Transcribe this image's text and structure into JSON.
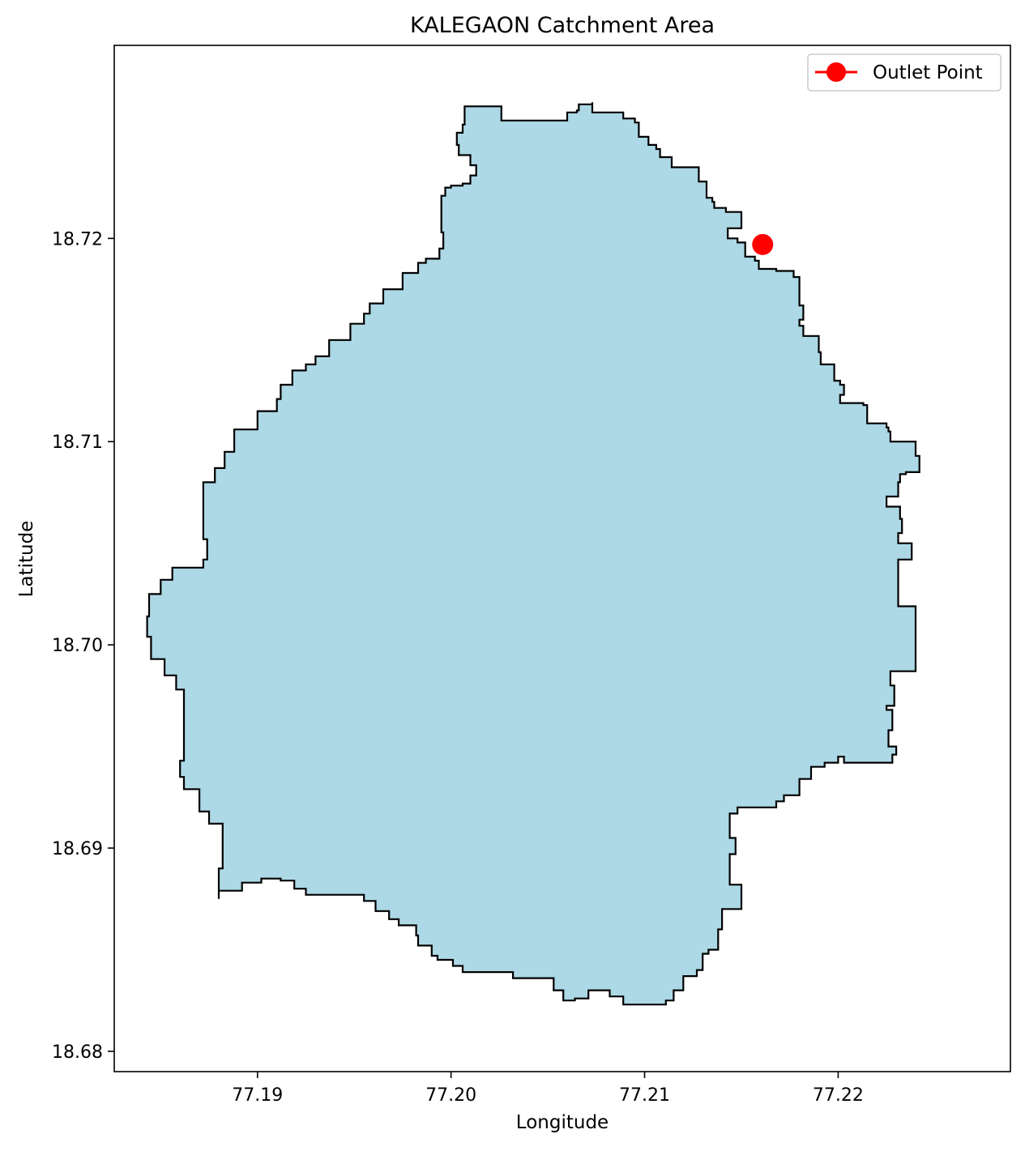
{
  "chart_data": {
    "type": "map",
    "title": "KALEGAON Catchment Area",
    "xlabel": "Longitude",
    "ylabel": "Latitude",
    "xlim": [
      77.1826,
      77.2289
    ],
    "ylim": [
      18.679,
      18.7295
    ],
    "x_ticks": [
      {
        "value": 77.19,
        "label": "77.19"
      },
      {
        "value": 77.2,
        "label": "77.20"
      },
      {
        "value": 77.21,
        "label": "77.21"
      },
      {
        "value": 77.22,
        "label": "77.22"
      }
    ],
    "y_ticks": [
      {
        "value": 18.68,
        "label": "18.68"
      },
      {
        "value": 18.69,
        "label": "18.69"
      },
      {
        "value": 18.7,
        "label": "18.70"
      },
      {
        "value": 18.71,
        "label": "18.71"
      },
      {
        "value": 18.72,
        "label": "18.72"
      }
    ],
    "grid": false,
    "legend": {
      "position": "top-right",
      "entries": [
        {
          "label": "Outlet Point",
          "marker": "circle",
          "color": "#ff0000"
        }
      ]
    },
    "catchment": {
      "fill_color": "#add8e6",
      "edge_color": "#000000",
      "boundary": [
        [
          77.2007,
          18.7265
        ],
        [
          77.2026,
          18.7265
        ],
        [
          77.2026,
          18.7258
        ],
        [
          77.206,
          18.7258
        ],
        [
          77.206,
          18.7262
        ],
        [
          77.2065,
          18.7263
        ],
        [
          77.2066,
          18.7266
        ],
        [
          77.2073,
          18.7267
        ],
        [
          77.2073,
          18.7262
        ],
        [
          77.2089,
          18.7262
        ],
        [
          77.2089,
          18.7259
        ],
        [
          77.2095,
          18.7257
        ],
        [
          77.2097,
          18.725
        ],
        [
          77.2102,
          18.7246
        ],
        [
          77.2106,
          18.7244
        ],
        [
          77.2108,
          18.724
        ],
        [
          77.2114,
          18.7235
        ],
        [
          77.2128,
          18.7233
        ],
        [
          77.2128,
          18.7228
        ],
        [
          77.2132,
          18.722
        ],
        [
          77.2135,
          18.7218
        ],
        [
          77.2136,
          18.7215
        ],
        [
          77.2142,
          18.7213
        ],
        [
          77.215,
          18.7212
        ],
        [
          77.215,
          18.7205
        ],
        [
          77.2143,
          18.7204
        ],
        [
          77.2143,
          18.72
        ],
        [
          77.2148,
          18.7198
        ],
        [
          77.2152,
          18.7195
        ],
        [
          77.2152,
          18.7191
        ],
        [
          77.2157,
          18.7189
        ],
        [
          77.2159,
          18.7185
        ],
        [
          77.2168,
          18.7184
        ],
        [
          77.2174,
          18.7184
        ],
        [
          77.2177,
          18.7181
        ],
        [
          77.218,
          18.7177
        ],
        [
          77.218,
          18.7167
        ],
        [
          77.2182,
          18.716
        ],
        [
          77.218,
          18.7157
        ],
        [
          77.2182,
          18.7152
        ],
        [
          77.219,
          18.715
        ],
        [
          77.219,
          18.7144
        ],
        [
          77.2191,
          18.7138
        ],
        [
          77.2198,
          18.7136
        ],
        [
          77.2198,
          18.713
        ],
        [
          77.2201,
          18.7128
        ],
        [
          77.2203,
          18.7123
        ],
        [
          77.2201,
          18.7119
        ],
        [
          77.2213,
          18.7118
        ],
        [
          77.2215,
          18.7109
        ],
        [
          77.2225,
          18.7107
        ],
        [
          77.2226,
          18.7105
        ],
        [
          77.2227,
          18.71
        ],
        [
          77.2234,
          18.71
        ],
        [
          77.224,
          18.7093
        ],
        [
          77.2242,
          18.7085
        ],
        [
          77.2235,
          18.7084
        ],
        [
          77.2232,
          18.708
        ],
        [
          77.2231,
          18.7073
        ],
        [
          77.2225,
          18.7068
        ],
        [
          77.2232,
          18.7062
        ],
        [
          77.2233,
          18.7055
        ],
        [
          77.2231,
          18.705
        ],
        [
          77.2238,
          18.7042
        ],
        [
          77.2231,
          18.7032
        ],
        [
          77.2231,
          18.7019
        ],
        [
          77.224,
          18.7011
        ],
        [
          77.224,
          18.7
        ],
        [
          77.224,
          18.6987
        ],
        [
          77.2229,
          18.6987
        ],
        [
          77.2227,
          18.698
        ],
        [
          77.2229,
          18.697
        ],
        [
          77.2225,
          18.6968
        ],
        [
          77.2228,
          18.6958
        ],
        [
          77.2226,
          18.695
        ],
        [
          77.223,
          18.6946
        ],
        [
          77.2228,
          18.6942
        ],
        [
          77.2212,
          18.6942
        ],
        [
          77.2203,
          18.6945
        ],
        [
          77.22,
          18.6942
        ],
        [
          77.2193,
          18.694
        ],
        [
          77.2186,
          18.6934
        ],
        [
          77.218,
          18.6926
        ],
        [
          77.2172,
          18.6923
        ],
        [
          77.2168,
          18.692
        ],
        [
          77.216,
          18.692
        ],
        [
          77.2148,
          18.6917
        ],
        [
          77.2144,
          18.6913
        ],
        [
          77.2144,
          18.6905
        ],
        [
          77.2147,
          18.6897
        ],
        [
          77.2144,
          18.689
        ],
        [
          77.2144,
          18.6882
        ],
        [
          77.215,
          18.688
        ],
        [
          77.215,
          18.687
        ],
        [
          77.214,
          18.6868
        ],
        [
          77.214,
          18.686
        ],
        [
          77.2138,
          18.685
        ],
        [
          77.2133,
          18.6848
        ],
        [
          77.213,
          18.684
        ],
        [
          77.2127,
          18.6837
        ],
        [
          77.212,
          18.683
        ],
        [
          77.2115,
          18.6825
        ],
        [
          77.2111,
          18.6823
        ],
        [
          77.21,
          18.6823
        ],
        [
          77.2089,
          18.6827
        ],
        [
          77.2082,
          18.683
        ],
        [
          77.2071,
          18.6826
        ],
        [
          77.2064,
          18.6825
        ],
        [
          77.2058,
          18.683
        ],
        [
          77.2053,
          18.6836
        ],
        [
          77.2037,
          18.6836
        ],
        [
          77.2032,
          18.6839
        ],
        [
          77.202,
          18.6839
        ],
        [
          77.2012,
          18.6839
        ],
        [
          77.2006,
          18.6842
        ],
        [
          77.2001,
          18.6845
        ],
        [
          77.1993,
          18.6847
        ],
        [
          77.199,
          18.6852
        ],
        [
          77.1983,
          18.6857
        ],
        [
          77.1982,
          18.6862
        ],
        [
          77.1973,
          18.6865
        ],
        [
          77.1968,
          18.6869
        ],
        [
          77.1961,
          18.6874
        ],
        [
          77.1955,
          18.6877
        ],
        [
          77.194,
          18.6877
        ],
        [
          77.1925,
          18.688
        ],
        [
          77.1919,
          18.6884
        ],
        [
          77.1912,
          18.6885
        ],
        [
          77.1902,
          18.6883
        ],
        [
          77.1892,
          18.6879
        ],
        [
          77.188,
          18.6875
        ],
        [
          77.188,
          18.689
        ],
        [
          77.1882,
          18.6912
        ],
        [
          77.1875,
          18.6918
        ],
        [
          77.187,
          18.6929
        ],
        [
          77.1862,
          18.6935
        ],
        [
          77.186,
          18.6943
        ],
        [
          77.1862,
          18.6962
        ],
        [
          77.1862,
          18.6978
        ],
        [
          77.1858,
          18.6985
        ],
        [
          77.1852,
          18.6993
        ],
        [
          77.1845,
          18.7004
        ],
        [
          77.1843,
          18.7014
        ],
        [
          77.1844,
          18.7025
        ],
        [
          77.185,
          18.7032
        ],
        [
          77.1856,
          18.7038
        ],
        [
          77.1872,
          18.7042
        ],
        [
          77.1874,
          18.7052
        ],
        [
          77.1872,
          18.7065
        ],
        [
          77.1872,
          18.708
        ],
        [
          77.1878,
          18.7087
        ],
        [
          77.1883,
          18.7095
        ],
        [
          77.1888,
          18.7106
        ],
        [
          77.19,
          18.7115
        ],
        [
          77.191,
          18.7121
        ],
        [
          77.1912,
          18.7128
        ],
        [
          77.1918,
          18.7135
        ],
        [
          77.1925,
          18.7138
        ],
        [
          77.193,
          18.7142
        ],
        [
          77.1937,
          18.715
        ],
        [
          77.1948,
          18.7158
        ],
        [
          77.1955,
          18.7163
        ],
        [
          77.1958,
          18.7168
        ],
        [
          77.1965,
          18.7175
        ],
        [
          77.1975,
          18.7183
        ],
        [
          77.1983,
          18.7188
        ],
        [
          77.1987,
          18.719
        ],
        [
          77.1994,
          18.7195
        ],
        [
          77.1996,
          18.7203
        ],
        [
          77.1995,
          18.7212
        ],
        [
          77.1995,
          18.7221
        ],
        [
          77.1997,
          18.7225
        ],
        [
          77.2,
          18.7226
        ],
        [
          77.2003,
          18.7226
        ],
        [
          77.2006,
          18.7227
        ],
        [
          77.201,
          18.7231
        ],
        [
          77.2013,
          18.7236
        ],
        [
          77.201,
          18.7241
        ],
        [
          77.2004,
          18.7246
        ],
        [
          77.2003,
          18.7252
        ],
        [
          77.2006,
          18.7256
        ],
        [
          77.2007,
          18.726
        ]
      ]
    },
    "outlet_point": {
      "lon": 77.2161,
      "lat": 18.7197,
      "label": "Outlet Point",
      "color": "#ff0000"
    }
  }
}
